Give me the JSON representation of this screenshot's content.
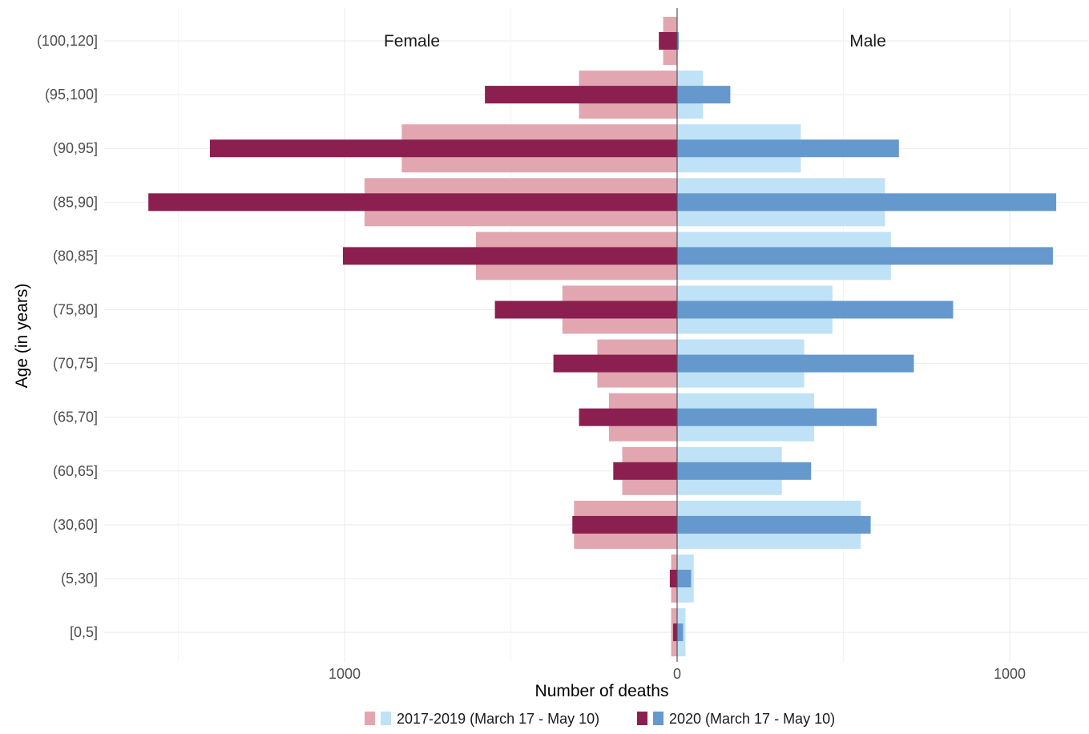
{
  "chart_data": {
    "type": "bar",
    "orientation": "horizontal",
    "layout": "population-pyramid",
    "categories": [
      "[0,5]",
      "(5,30]",
      "(30,60]",
      "(60,65]",
      "(65,70]",
      "(70,75]",
      "(75,80]",
      "(80,85]",
      "(85,90]",
      "(90,95]",
      "(95,100]",
      "(100,120]"
    ],
    "xlabel": "Number of deaths",
    "ylabel": "Age (in years)",
    "xlim": [
      -1700,
      1220
    ],
    "xticks": [
      {
        "value": -1000,
        "label": "1000"
      },
      {
        "value": 0,
        "label": "0"
      },
      {
        "value": 1000,
        "label": "1000"
      }
    ],
    "panel_labels": {
      "female": "Female",
      "male": "Male"
    },
    "grid": true,
    "legend": {
      "position": "bottom",
      "entries": [
        {
          "label": "2017-2019 (March 17 - May 10)",
          "colors": [
            "#e2a6b1",
            "#bfe2f6"
          ]
        },
        {
          "label": "2020 (March 17 - May 10)",
          "colors": [
            "#8b2050",
            "#6599cd"
          ]
        }
      ]
    },
    "colors": {
      "female_baseline": "#e2a6b1",
      "female_2020": "#8b2050",
      "male_baseline": "#bfe2f6",
      "male_2020": "#6599cd"
    },
    "series": [
      {
        "sex": "Female",
        "period": "2017-2019 (March 17 - May 10)",
        "values": [
          18,
          18,
          310,
          165,
          205,
          240,
          345,
          605,
          940,
          828,
          295,
          42
        ]
      },
      {
        "sex": "Female",
        "period": "2020 (March 17 - May 10)",
        "values": [
          12,
          22,
          315,
          192,
          295,
          372,
          548,
          1005,
          1590,
          1405,
          578,
          55
        ]
      },
      {
        "sex": "Male",
        "period": "2017-2019 (March 17 - May 10)",
        "values": [
          25,
          50,
          552,
          315,
          412,
          382,
          467,
          643,
          625,
          372,
          78,
          0
        ]
      },
      {
        "sex": "Male",
        "period": "2020 (March 17 - May 10)",
        "values": [
          18,
          42,
          582,
          403,
          600,
          712,
          830,
          1130,
          1140,
          667,
          160,
          5
        ]
      }
    ]
  }
}
